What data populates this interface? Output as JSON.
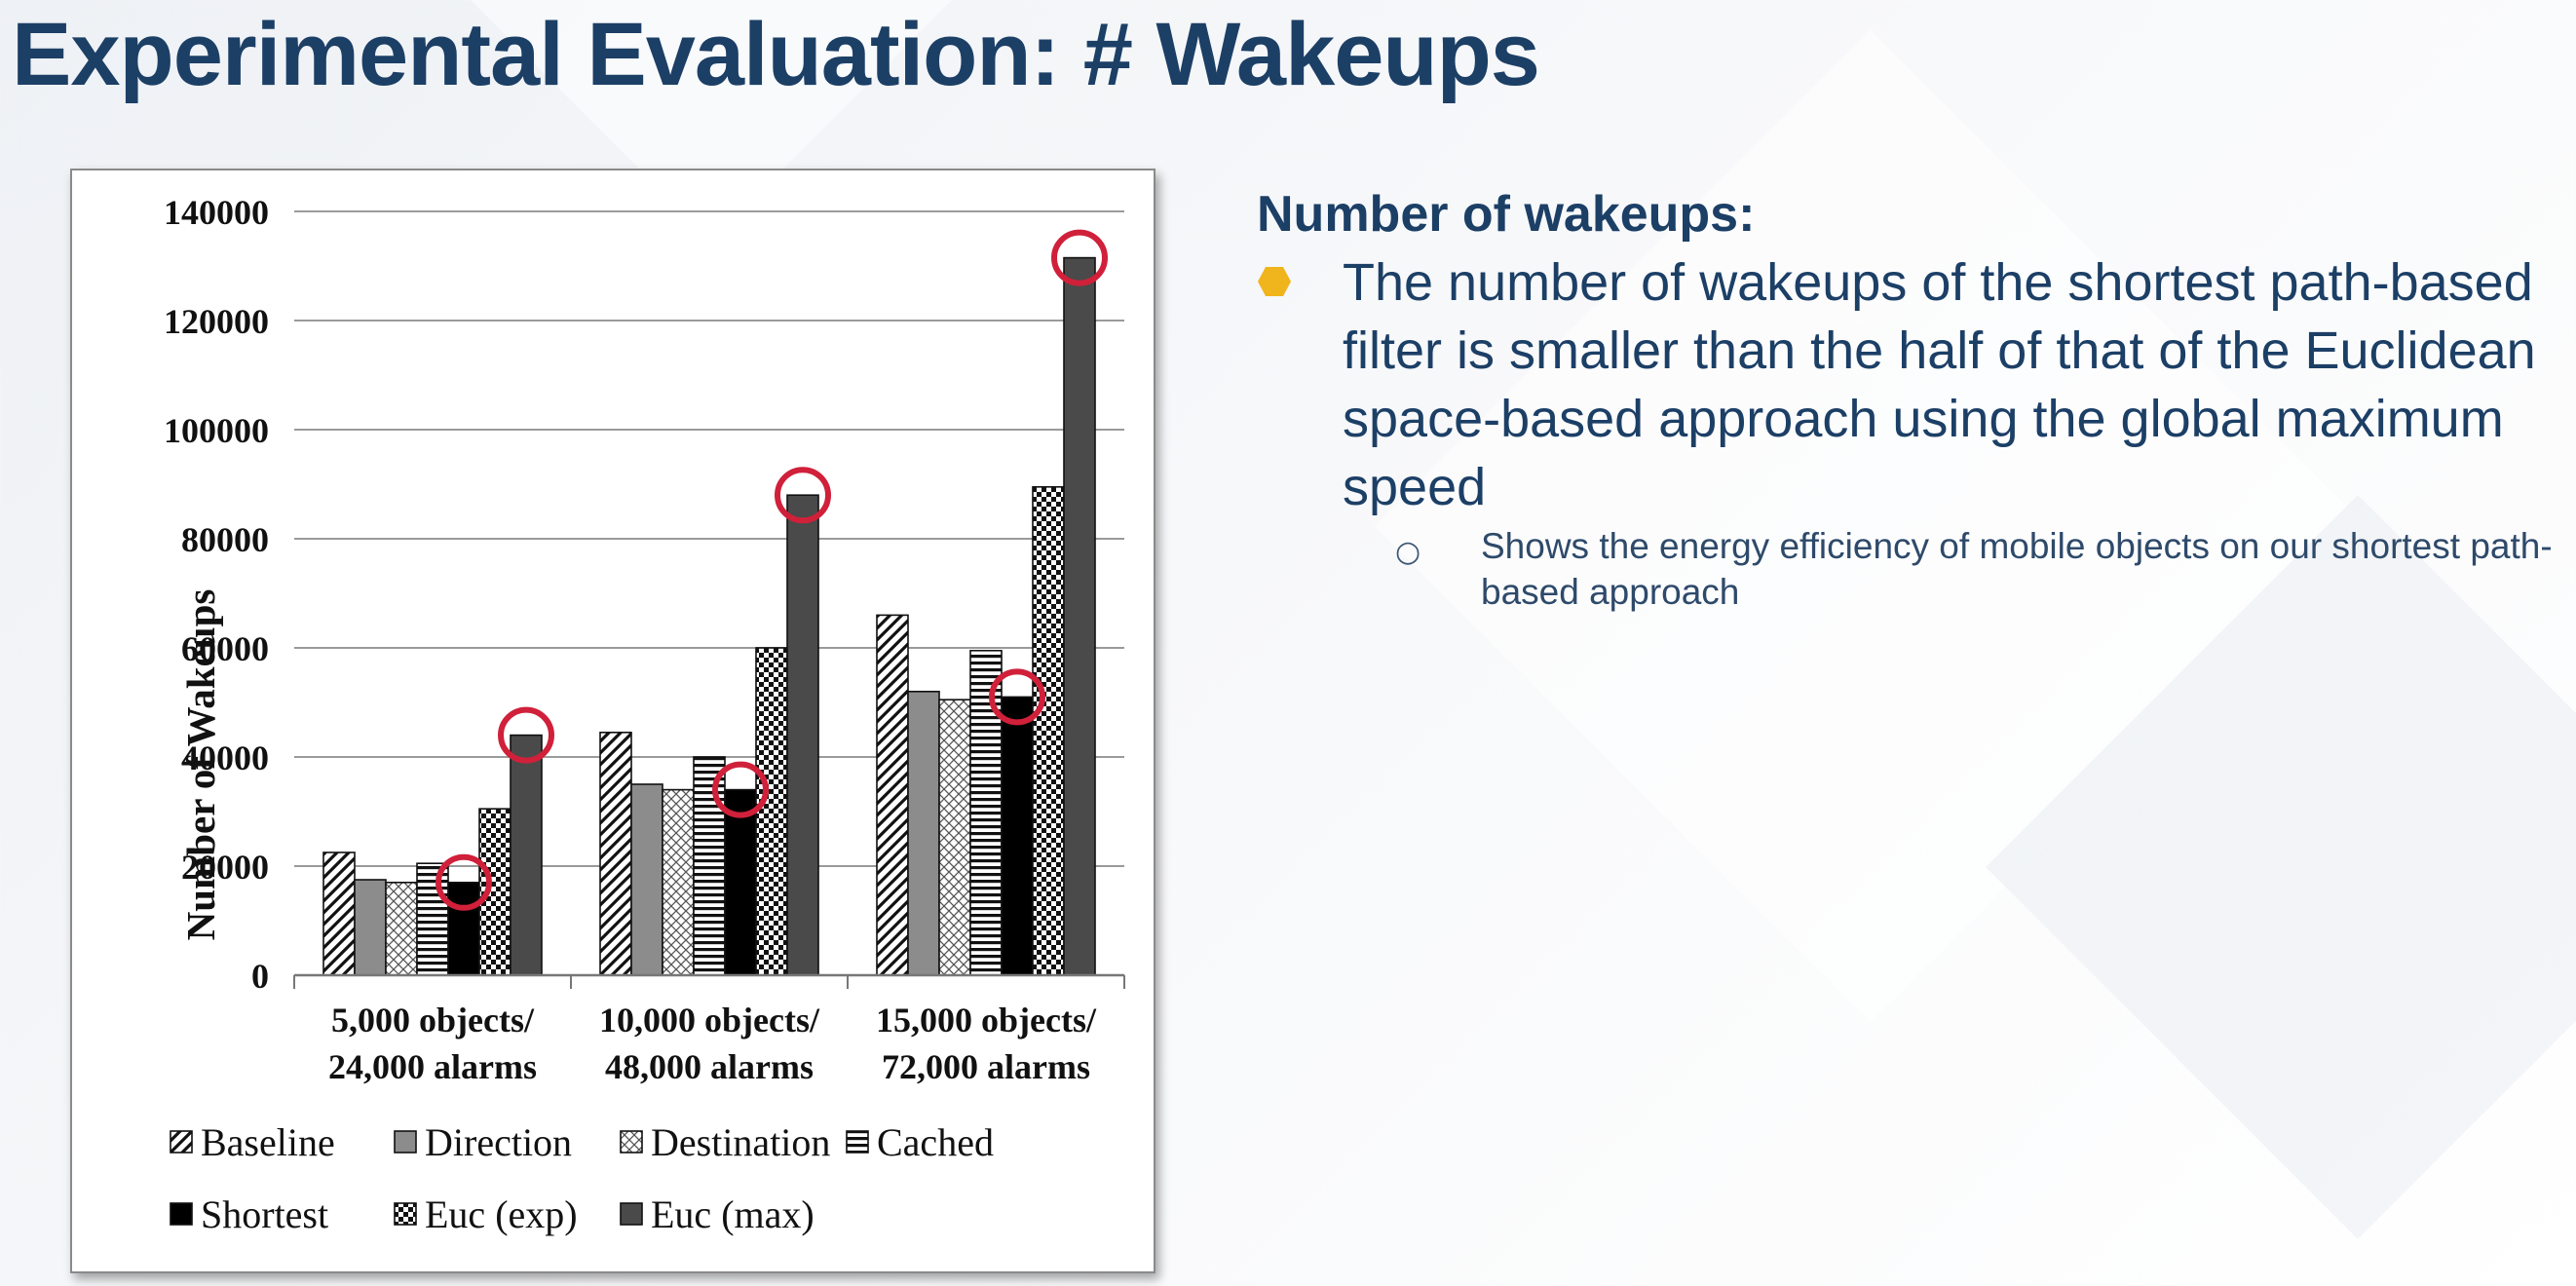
{
  "slide": {
    "title": "Experimental Evaluation: # Wakeups"
  },
  "text_panel": {
    "heading": "Number of wakeups:",
    "bullet_icon": "hexagon-bullet-icon",
    "bullet": "The number of wakeups of the shortest path-based filter is smaller than the half of that of the Euclidean space-based approach using the global maximum speed",
    "sub_bullet_icon": "circle-bullet-icon",
    "sub_bullet": "Shows the energy efficiency of mobile objects on our shortest path-based approach"
  },
  "colors": {
    "title": "#1c3f66",
    "bullet_marker": "#f0b41c",
    "highlight_circle": "#d0203a"
  },
  "chart_data": {
    "type": "bar",
    "ylabel": "Number of Wakeups",
    "xlabel": "",
    "ylim": [
      0,
      140000
    ],
    "yticks": [
      0,
      20000,
      40000,
      60000,
      80000,
      100000,
      120000,
      140000
    ],
    "grid": true,
    "legend_position": "bottom",
    "categories": [
      [
        "5,000 objects/",
        "24,000 alarms"
      ],
      [
        "10,000 objects/",
        "48,000 alarms"
      ],
      [
        "15,000 objects/",
        "72,000 alarms"
      ]
    ],
    "series": [
      {
        "name": "Baseline",
        "pattern": "diagonal-stripes",
        "values": [
          22500,
          44500,
          66000
        ]
      },
      {
        "name": "Direction",
        "pattern": "solid-gray",
        "values": [
          17500,
          35000,
          52000
        ]
      },
      {
        "name": "Destination",
        "pattern": "crosshatch",
        "values": [
          17000,
          34000,
          50500
        ]
      },
      {
        "name": "Cached",
        "pattern": "horizontal-stripes",
        "values": [
          20500,
          40000,
          59500
        ]
      },
      {
        "name": "Shortest",
        "pattern": "solid-black",
        "values": [
          17000,
          34000,
          51000
        ]
      },
      {
        "name": "Euc (exp)",
        "pattern": "checkerboard",
        "values": [
          30500,
          60000,
          89500
        ]
      },
      {
        "name": "Euc (max)",
        "pattern": "solid-dark-gray",
        "values": [
          44000,
          88000,
          131500
        ]
      }
    ],
    "highlighted": [
      {
        "series": "Shortest",
        "category_index": 0
      },
      {
        "series": "Shortest",
        "category_index": 1
      },
      {
        "series": "Shortest",
        "category_index": 2
      },
      {
        "series": "Euc (max)",
        "category_index": 0
      },
      {
        "series": "Euc (max)",
        "category_index": 1
      },
      {
        "series": "Euc (max)",
        "category_index": 2
      }
    ]
  }
}
